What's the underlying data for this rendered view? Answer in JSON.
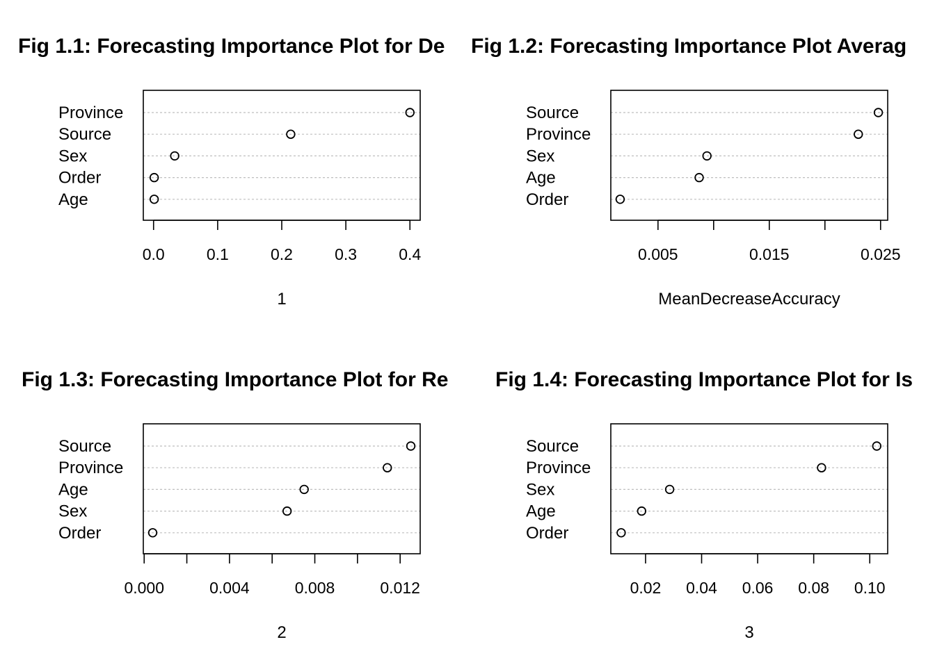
{
  "chart_data": [
    {
      "type": "scatter",
      "title": "Fig 1.1: Forecasting Importance Plot for De",
      "xlabel": "1",
      "categories": [
        "Province",
        "Source",
        "Sex",
        "Order",
        "Age"
      ],
      "values": [
        0.4,
        0.214,
        0.033,
        0.001,
        0.001
      ],
      "xlim": [
        -0.016,
        0.416
      ],
      "ticks": [
        0.0,
        0.1,
        0.2,
        0.3,
        0.4
      ],
      "tick_labels": [
        "0.0",
        "0.1",
        "0.2",
        "0.3",
        "0.4"
      ],
      "grid": "dotted"
    },
    {
      "type": "scatter",
      "title": "Fig 1.2: Forecasting Importance Plot Averag",
      "xlabel": "MeanDecreaseAccuracy",
      "categories": [
        "Source",
        "Province",
        "Sex",
        "Age",
        "Order"
      ],
      "values": [
        0.0248,
        0.023,
        0.0094,
        0.0087,
        0.0016
      ],
      "xlim": [
        0.00076,
        0.02564
      ],
      "ticks": [
        0.005,
        0.01,
        0.015,
        0.02,
        0.025
      ],
      "tick_labels": [
        "0.005",
        "",
        "0.015",
        "",
        "0.025"
      ],
      "grid": "dotted"
    },
    {
      "type": "scatter",
      "title": "Fig 1.3: Forecasting Importance Plot for Re",
      "xlabel": "2",
      "categories": [
        "Source",
        "Province",
        "Age",
        "Sex",
        "Order"
      ],
      "values": [
        0.0125,
        0.0114,
        0.0075,
        0.0067,
        0.0004
      ],
      "xlim": [
        -4e-05,
        0.01294
      ],
      "ticks": [
        0.0,
        0.002,
        0.004,
        0.006,
        0.008,
        0.01,
        0.012
      ],
      "tick_labels": [
        "0.000",
        "",
        "0.004",
        "",
        "0.008",
        "",
        "0.012"
      ],
      "grid": "dotted"
    },
    {
      "type": "scatter",
      "title": "Fig 1.4: Forecasting Importance Plot for Is",
      "xlabel": "3",
      "categories": [
        "Source",
        "Province",
        "Sex",
        "Age",
        "Order"
      ],
      "values": [
        0.1025,
        0.0828,
        0.0286,
        0.0186,
        0.0113
      ],
      "xlim": [
        0.0076,
        0.1064
      ],
      "ticks": [
        0.02,
        0.04,
        0.06,
        0.08,
        0.1
      ],
      "tick_labels": [
        "0.02",
        "0.04",
        "0.06",
        "0.08",
        "0.10"
      ],
      "grid": "dotted"
    }
  ]
}
